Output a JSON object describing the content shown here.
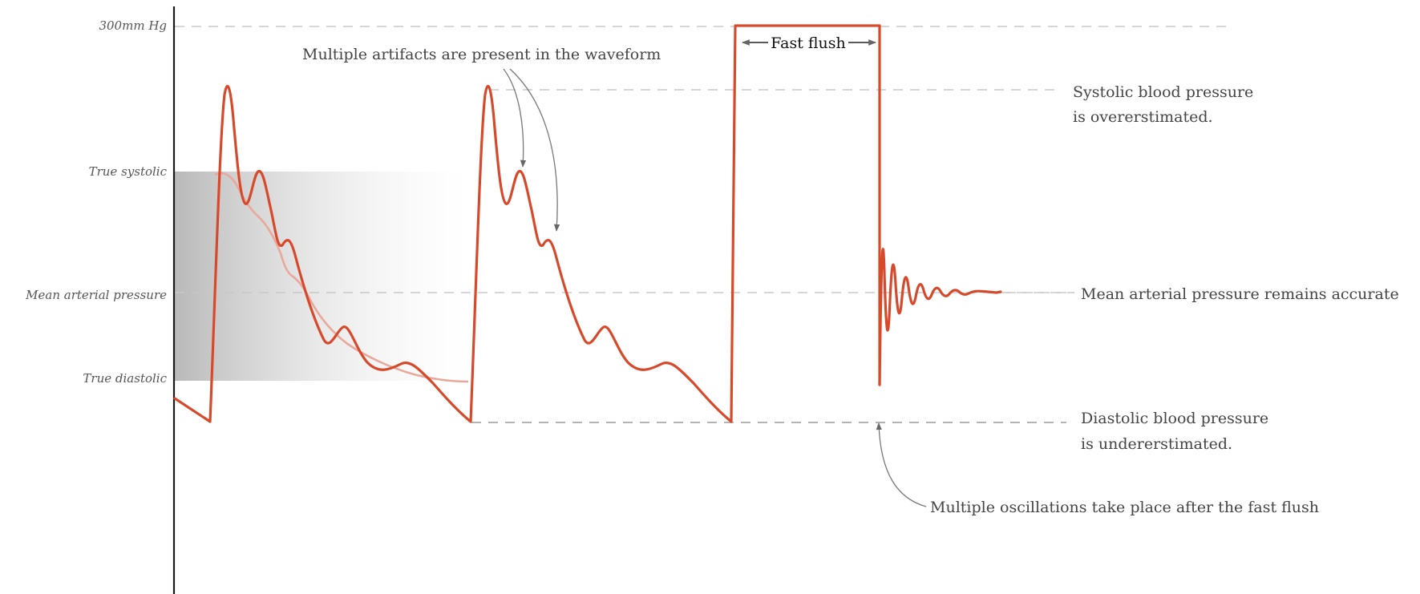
{
  "axis_labels": {
    "max": "300mm Hg",
    "true_systolic": "True systolic",
    "mean_arterial": "Mean arterial pressure",
    "true_diastolic": "True diastolic"
  },
  "annotations": {
    "artifacts": "Multiple artifacts are present in the waveform",
    "fast_flush": "Fast flush",
    "oscillations": "Multiple oscillations take place after the fast flush"
  },
  "right_labels": {
    "systolic_line1": "Systolic blood pressure",
    "systolic_line2": "is overerstimated.",
    "map": "Mean arterial pressure remains accurate",
    "diastolic_line1": "Diastolic blood pressure",
    "diastolic_line2": "is undererstimated."
  },
  "colors": {
    "waveform": "#d64a2b",
    "true_waveform": "#e9a89b",
    "shade_start": "#b5b5b5",
    "guides": "#c8c8c8"
  }
}
